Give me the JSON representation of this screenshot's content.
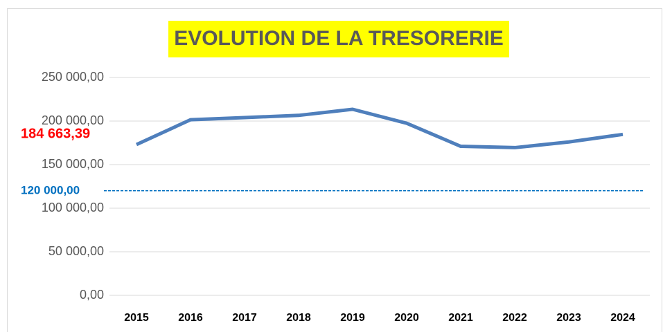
{
  "chart_data": {
    "type": "line",
    "title": "EVOLUTION DE LA TRESORERIE",
    "categories": [
      "2015",
      "2016",
      "2017",
      "2018",
      "2019",
      "2020",
      "2021",
      "2022",
      "2023",
      "2024"
    ],
    "series": [
      {
        "name": "Trésorerie",
        "color": "#4f7fbc",
        "values": [
          173000,
          201500,
          204000,
          206500,
          213500,
          197500,
          171000,
          169500,
          176000,
          184663.39
        ],
        "value_labels": [
          null,
          null,
          null,
          null,
          null,
          null,
          null,
          null,
          null,
          "184 663,39"
        ],
        "value_label_color": "#ff0000"
      }
    ],
    "ylim": [
      0,
      250000
    ],
    "yticks": [
      {
        "value": 0,
        "label": "0,00"
      },
      {
        "value": 50000,
        "label": "50 000,00"
      },
      {
        "value": 100000,
        "label": "100 000,00"
      },
      {
        "value": 150000,
        "label": "150 000,00"
      },
      {
        "value": 200000,
        "label": "200 000,00"
      },
      {
        "value": 250000,
        "label": "250 000,00"
      }
    ],
    "reference_lines": [
      {
        "value": 120000,
        "label": "120 000,00",
        "color": "#0070c0"
      }
    ],
    "grid": true
  }
}
